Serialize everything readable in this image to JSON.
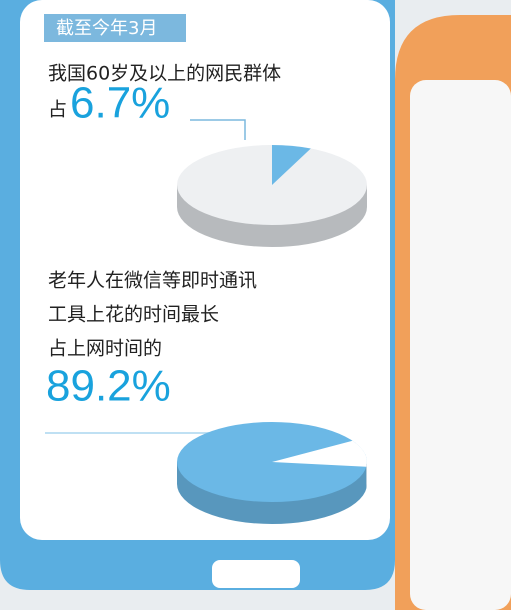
{
  "header": "截至今年3月",
  "chart_data": [
    {
      "type": "pie",
      "title_lines": [
        "我国60岁及以上的网民群体",
        "占"
      ],
      "values": [
        6.7
      ],
      "value_labels": [
        "6.7%"
      ],
      "color": "#6bb8e6",
      "rest_color": "#eef0f2"
    },
    {
      "type": "pie",
      "title_lines": [
        "老年人在微信等即时通讯",
        "工具上花的时间最长",
        "占上网时间的"
      ],
      "values": [
        89.2
      ],
      "value_labels": [
        "89.2%"
      ],
      "color": "#6bb8e6",
      "rest_color": "#ffffff"
    }
  ]
}
